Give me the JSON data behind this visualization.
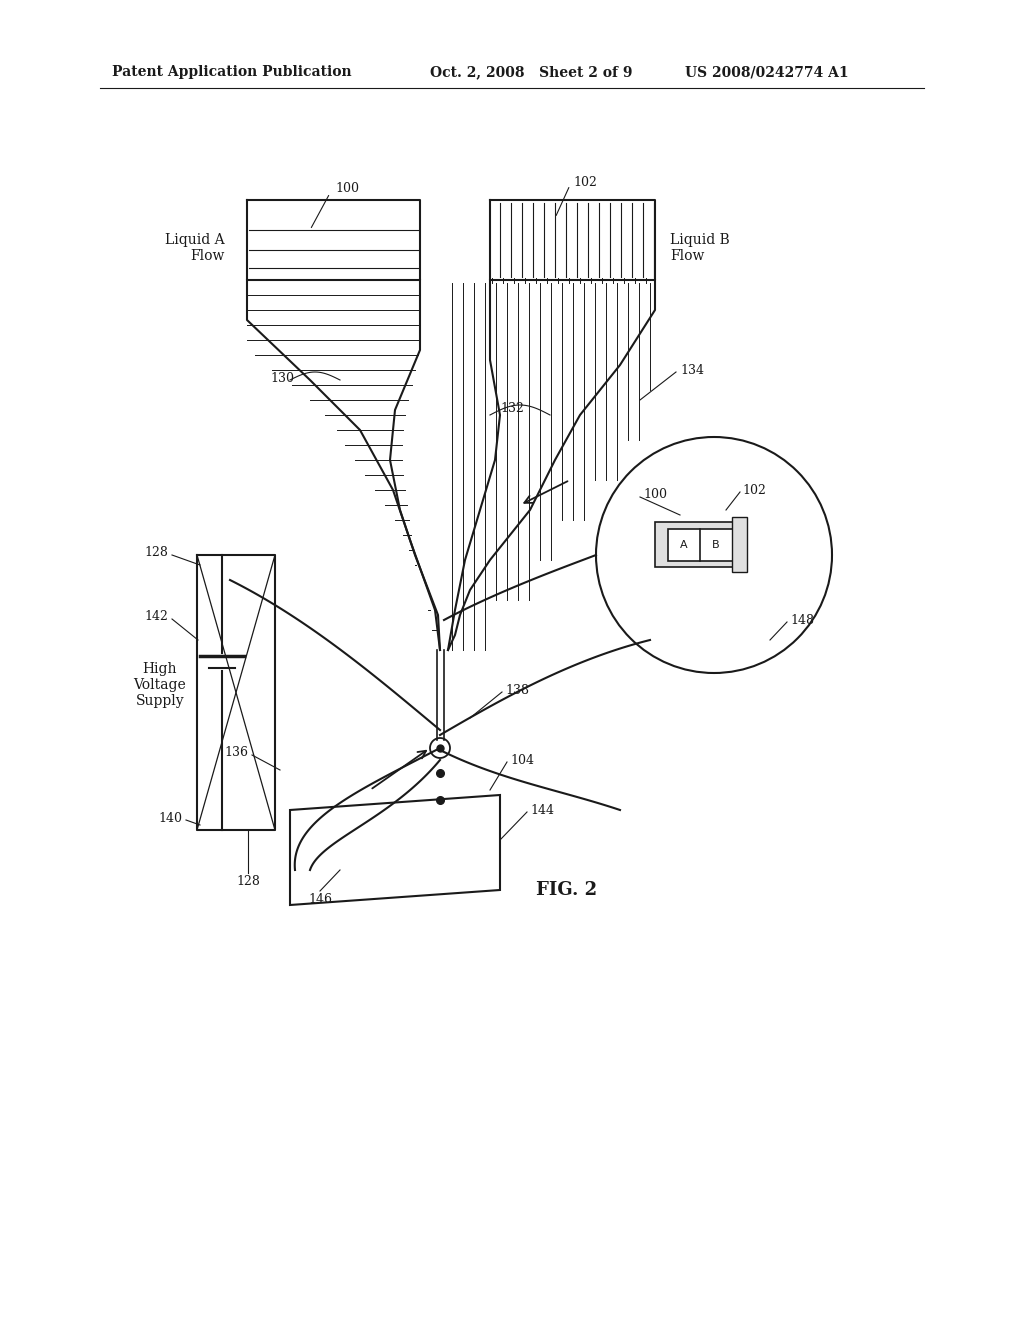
{
  "bg_color": "#ffffff",
  "line_color": "#1a1a1a",
  "header_left": "Patent Application Publication",
  "header_mid": "Oct. 2, 2008   Sheet 2 of 9",
  "header_right": "US 2008/0242774 A1",
  "fig_label": "FIG. 2",
  "fontsize_header": 10,
  "fontsize_labels": 10,
  "fontsize_refnums": 9,
  "fontsize_fig": 13,
  "fontsize_ab": 8
}
